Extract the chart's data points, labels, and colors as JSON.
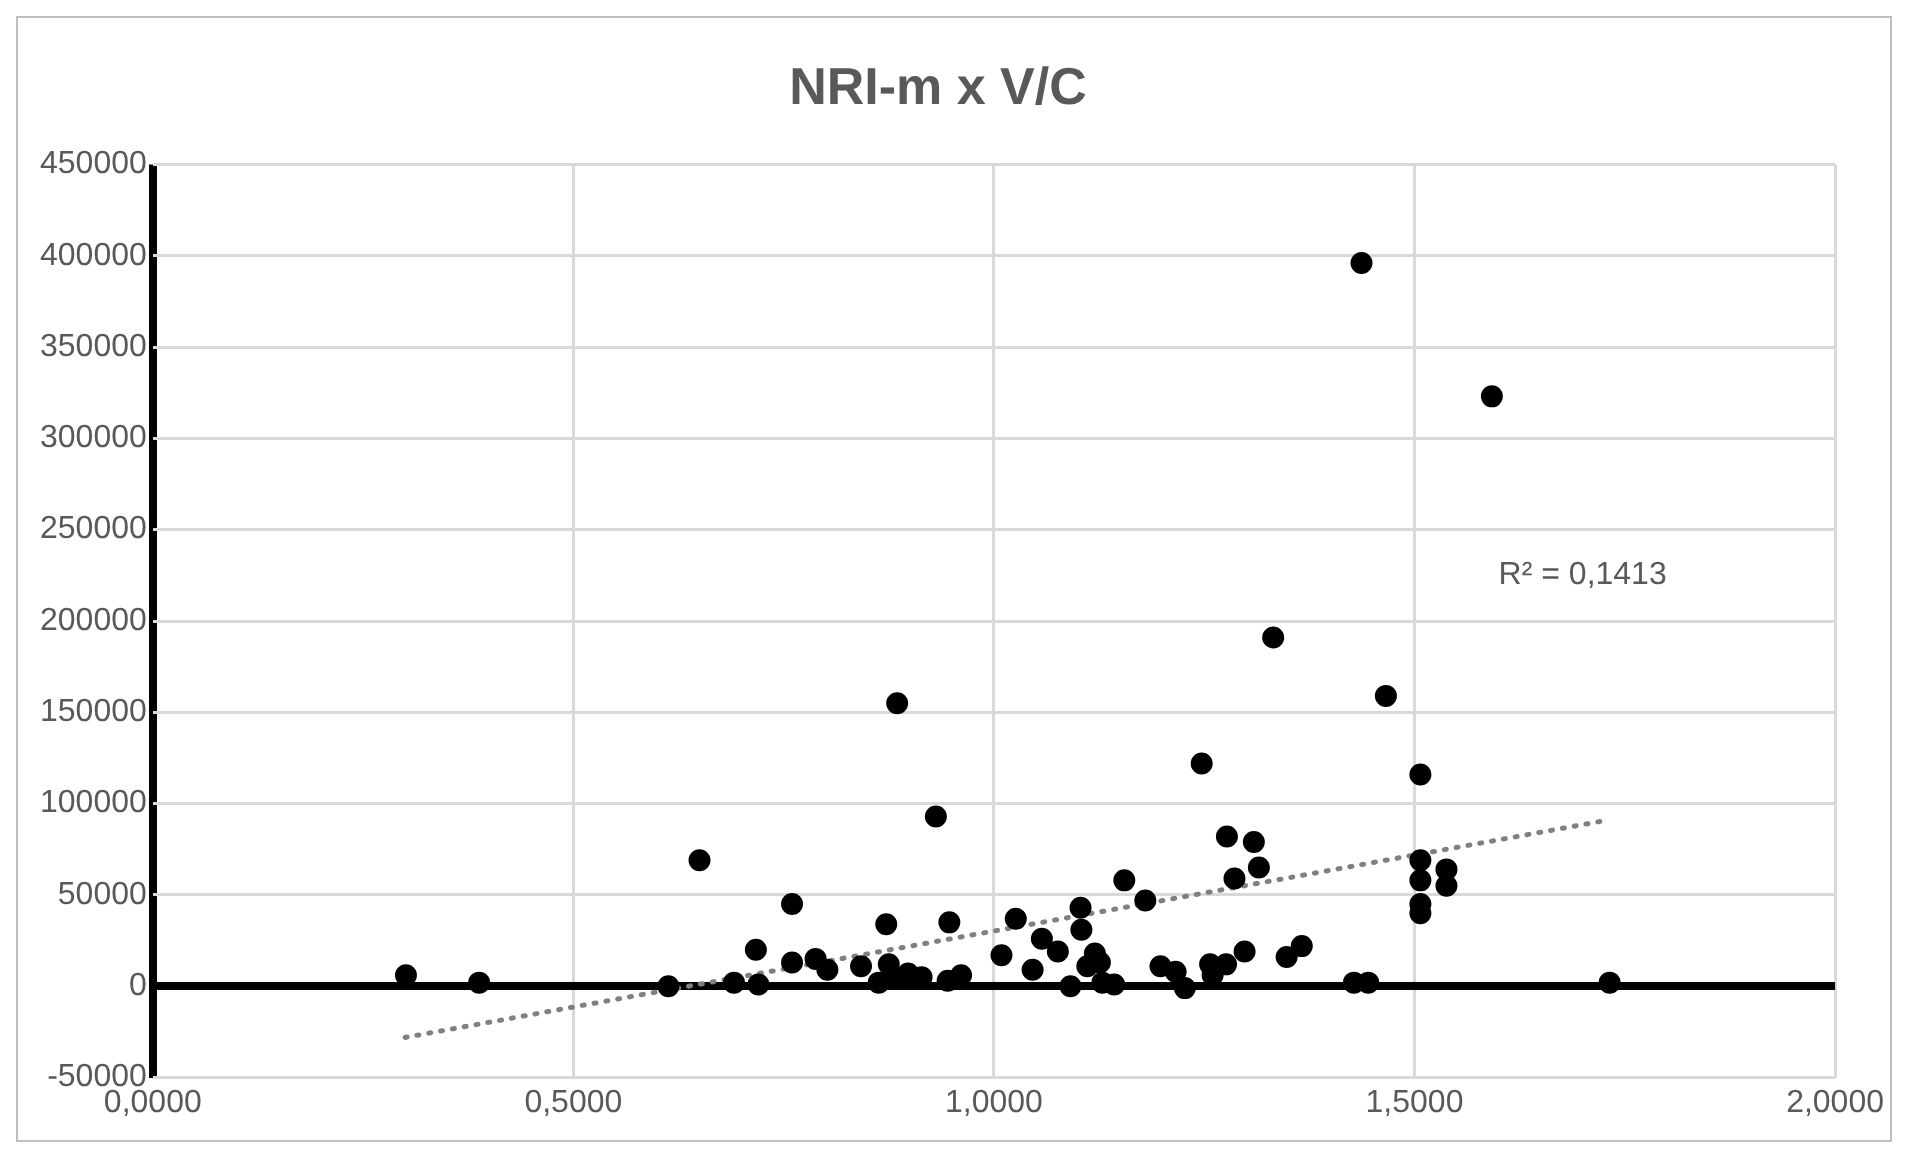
{
  "chart_data": {
    "type": "scatter",
    "title": "NRI-m x V/C",
    "xlim": [
      0,
      2
    ],
    "xticks": [
      {
        "value": 0,
        "label": "0,0000"
      },
      {
        "value": 0.5,
        "label": "0,5000"
      },
      {
        "value": 1,
        "label": "1,0000"
      },
      {
        "value": 1.5,
        "label": "1,5000"
      },
      {
        "value": 2,
        "label": "2,0000"
      }
    ],
    "ylim": [
      -50000,
      450000
    ],
    "yticks": [
      -50000,
      0,
      50000,
      100000,
      150000,
      200000,
      250000,
      300000,
      350000,
      400000,
      450000
    ],
    "grid": true,
    "marker": "circle",
    "annotations": [
      "R² = 0,1413"
    ],
    "series": [
      {
        "type": "scatter",
        "color": "#000000",
        "x": [
          0.301,
          0.388,
          0.613,
          0.65,
          0.691,
          0.717,
          0.72,
          0.76,
          0.76,
          0.788,
          0.802,
          0.842,
          0.863,
          0.872,
          0.875,
          0.882,
          0.885,
          0.898,
          0.914,
          0.931,
          0.945,
          0.947,
          0.961,
          1.009,
          1.026,
          1.046,
          1.057,
          1.076,
          1.091,
          1.103,
          1.104,
          1.111,
          1.12,
          1.126,
          1.129,
          1.143,
          1.155,
          1.18,
          1.198,
          1.216,
          1.227,
          1.247,
          1.257,
          1.26,
          1.276,
          1.277,
          1.286,
          1.298,
          1.309,
          1.315,
          1.332,
          1.348,
          1.366,
          1.428,
          1.437,
          1.445,
          1.466,
          1.507,
          1.507,
          1.507,
          1.507,
          1.507,
          1.538,
          1.538,
          1.592,
          1.732
        ],
        "values": [
          6000,
          2000,
          0,
          69000,
          2000,
          20000,
          1000,
          45000,
          13000,
          15000,
          9000,
          11000,
          2000,
          34000,
          12000,
          4000,
          155000,
          7000,
          5000,
          93000,
          3000,
          35000,
          6000,
          17000,
          37000,
          9000,
          26000,
          19000,
          0,
          43000,
          31000,
          11000,
          18000,
          13000,
          2000,
          1000,
          58000,
          47000,
          11000,
          8000,
          -1000,
          122000,
          12000,
          6000,
          12000,
          82000,
          59000,
          19000,
          79000,
          65000,
          191000,
          16000,
          22000,
          2000,
          396000,
          2000,
          159000,
          116000,
          69000,
          58000,
          45000,
          40000,
          64000,
          55000,
          323000,
          2000
        ]
      },
      {
        "type": "line",
        "color": "#808080",
        "line_style": "dotted",
        "marker": "none",
        "x": [
          0.3,
          1.73
        ],
        "values": [
          -28000,
          91000
        ]
      }
    ]
  }
}
